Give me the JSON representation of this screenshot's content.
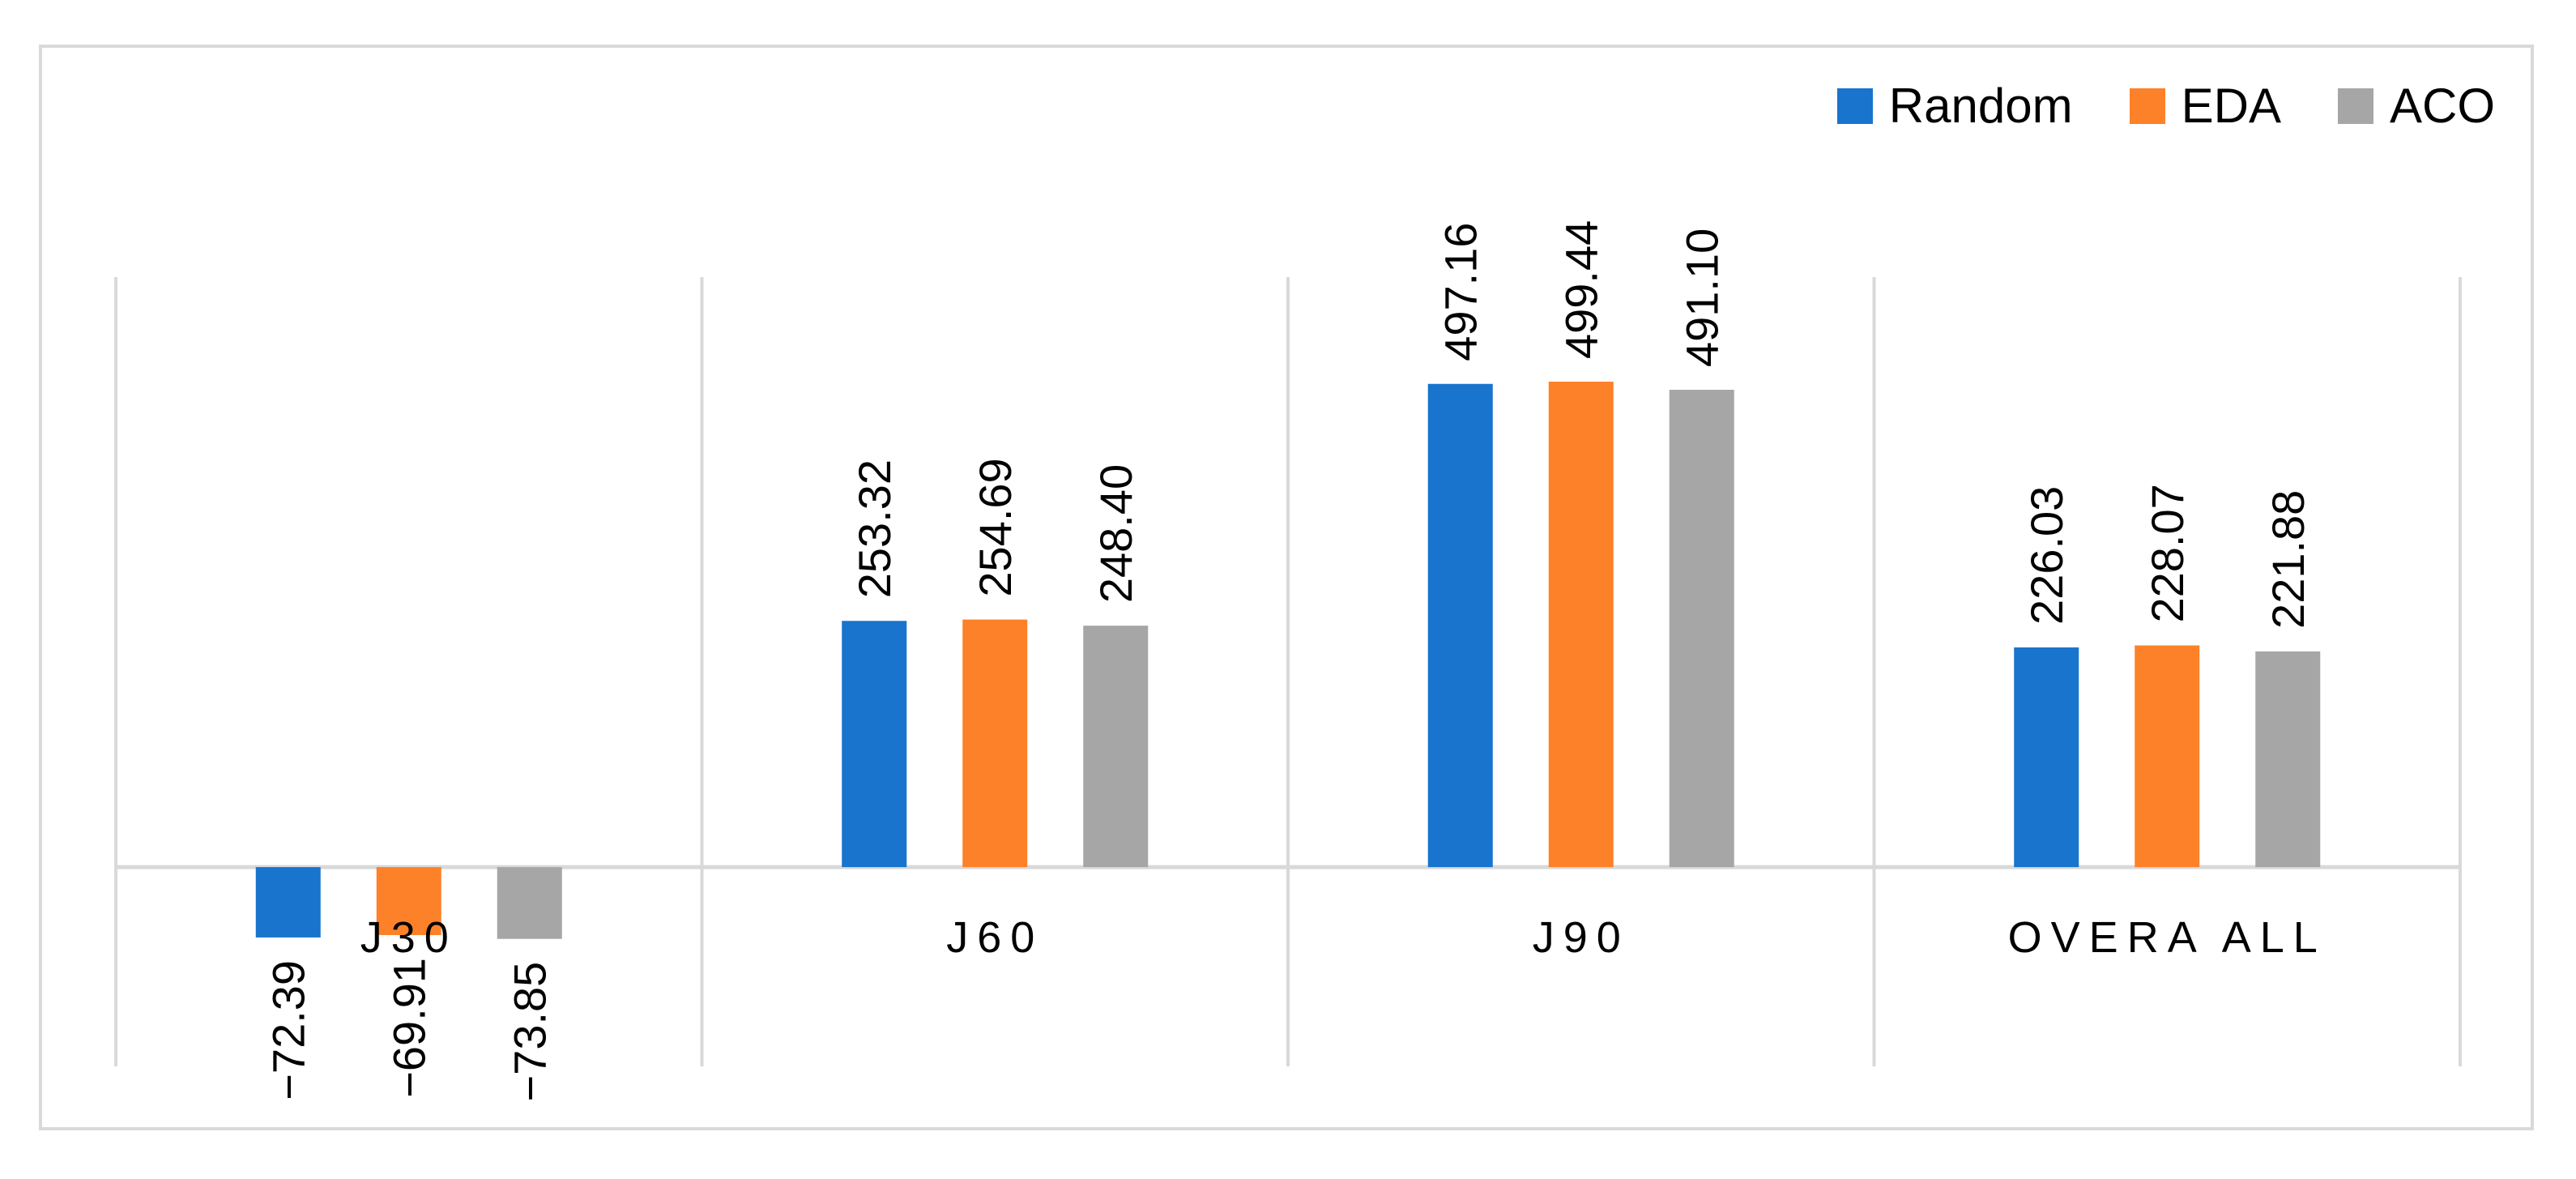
{
  "chart_data": {
    "type": "bar",
    "categories": [
      "J30",
      "J60",
      "J90",
      "OVERA ALL"
    ],
    "series": [
      {
        "name": "Random",
        "color": "#1874cd",
        "values": [
          -72.39,
          253.32,
          497.16,
          226.03
        ],
        "labels": [
          "−72.39",
          "253.32",
          "497.16",
          "226.03"
        ]
      },
      {
        "name": "EDA",
        "color": "#fd8128",
        "values": [
          -69.91,
          254.69,
          499.44,
          228.07
        ],
        "labels": [
          "−69.91",
          "254.69",
          "499.44",
          "228.07"
        ]
      },
      {
        "name": "ACO",
        "color": "#a6a6a6",
        "values": [
          -73.85,
          248.4,
          491.1,
          221.88
        ],
        "labels": [
          "−73.85",
          "248.40",
          "491.10",
          "221.88"
        ]
      }
    ],
    "ylim": [
      -205,
      607
    ],
    "grid": "vertical-category-dividers",
    "legend_position": "top-right",
    "title": "",
    "xlabel": "",
    "ylabel": ""
  }
}
